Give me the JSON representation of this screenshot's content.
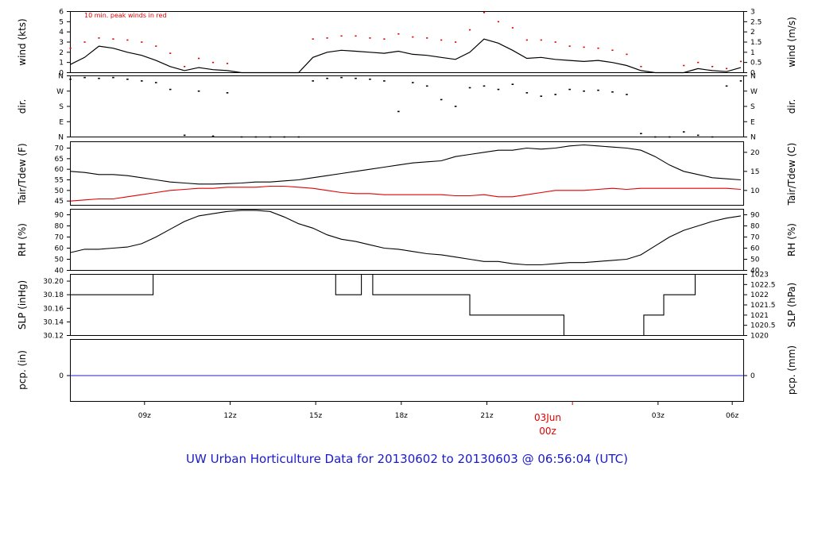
{
  "title": "UW Urban Horticulture Data for 20130602  to  20130603 @ 06:56:04  (UTC)",
  "colors": {
    "main": "#000000",
    "accent": "#e00000",
    "precip": "#2020c0",
    "title": "#1a1acc"
  },
  "time_axis": {
    "ticks": [
      "09z",
      "12z",
      "15z",
      "18z",
      "21z",
      "03z",
      "06z"
    ],
    "date_label": "03Jun",
    "date_sub": "00z"
  },
  "chart_data": [
    {
      "type": "line",
      "panel": "wind",
      "annotation": "10 min. peak winds in red",
      "ylabel_left": "wind (kts)",
      "ylabel_right": "wind (m/s)",
      "ylim": [
        0,
        6
      ],
      "yticks_left": [
        "0",
        "1",
        "2",
        "3",
        "4",
        "5",
        "6"
      ],
      "yticks_right": [
        "0",
        "0.5",
        "1",
        "1.5",
        "2",
        "2.5",
        "3"
      ],
      "x_hours": [
        0,
        0.5,
        1,
        1.5,
        2,
        2.5,
        3,
        3.5,
        4,
        4.5,
        5,
        5.5,
        6,
        6.5,
        7,
        7.5,
        8,
        8.5,
        9,
        9.5,
        10,
        10.5,
        11,
        11.5,
        12,
        12.5,
        13,
        13.5,
        14,
        14.5,
        15,
        15.5,
        16,
        16.5,
        17,
        17.5,
        18,
        18.5,
        19,
        19.5,
        20,
        20.5,
        21,
        21.5,
        22,
        22.5,
        23,
        23.5
      ],
      "series": [
        {
          "values": [
            0.8,
            1.5,
            2.6,
            2.4,
            2.0,
            1.7,
            1.2,
            0.6,
            0.2,
            0.5,
            0.3,
            0.2,
            0,
            0,
            0,
            0,
            0,
            1.5,
            2.0,
            2.2,
            2.1,
            2.0,
            1.9,
            2.1,
            1.8,
            1.7,
            1.5,
            1.3,
            2.0,
            3.3,
            2.9,
            2.2,
            1.4,
            1.5,
            1.3,
            1.2,
            1.1,
            1.2,
            1.0,
            0.7,
            0.2,
            0,
            0,
            0,
            0.4,
            0.2,
            0.1,
            0.5
          ]
        },
        {
          "values": [
            2.4,
            3.0,
            3.4,
            3.3,
            3.2,
            3.0,
            2.6,
            1.9,
            0.6,
            1.4,
            1.0,
            0.9,
            0,
            0,
            0,
            0,
            0,
            3.3,
            3.4,
            3.6,
            3.6,
            3.4,
            3.3,
            3.8,
            3.5,
            3.4,
            3.2,
            3.0,
            4.2,
            5.9,
            5.0,
            4.4,
            3.2,
            3.2,
            3.0,
            2.6,
            2.5,
            2.4,
            2.2,
            1.8,
            0.6,
            0,
            0,
            0.7,
            1.0,
            0.6,
            0.4,
            1.1
          ]
        }
      ]
    },
    {
      "type": "scatter",
      "panel": "dir",
      "ylabel_left": "dir.",
      "ylabel_right": "dir.",
      "ylim": [
        0,
        360
      ],
      "yticks_left": [
        "N",
        "E",
        "S",
        "W",
        "N"
      ],
      "yticks_right": [
        "N",
        "E",
        "S",
        "W",
        "N"
      ],
      "x_hours": [
        0,
        0.5,
        1,
        1.5,
        2,
        2.5,
        3,
        3.5,
        4,
        4.5,
        5,
        5.5,
        6,
        6.5,
        7,
        7.5,
        8,
        8.5,
        9,
        9.5,
        10,
        10.5,
        11,
        11.5,
        12,
        12.5,
        13,
        13.5,
        14,
        14.5,
        15,
        15.5,
        16,
        16.5,
        17,
        17.5,
        18,
        18.5,
        19,
        19.5,
        20,
        20.5,
        21,
        21.5,
        22,
        22.5,
        23,
        23.5
      ],
      "series": [
        {
          "values": [
            340,
            350,
            345,
            350,
            340,
            330,
            320,
            280,
            10,
            270,
            5,
            260,
            0,
            0,
            0,
            0,
            0,
            330,
            345,
            350,
            345,
            340,
            330,
            150,
            320,
            300,
            220,
            180,
            290,
            300,
            280,
            310,
            260,
            240,
            250,
            280,
            270,
            275,
            265,
            250,
            20,
            0,
            0,
            30,
            10,
            0,
            300,
            330
          ]
        }
      ]
    },
    {
      "type": "line",
      "panel": "temp",
      "ylabel_left": "Tair/Tdew (F)",
      "ylabel_right": "Tair/Tdew (C)",
      "ylim": [
        43,
        73
      ],
      "yticks_left": [
        "45",
        "50",
        "55",
        "60",
        "65",
        "70"
      ],
      "yticks_right": [
        "10",
        "15",
        "20"
      ],
      "x_hours": [
        0,
        0.5,
        1,
        1.5,
        2,
        2.5,
        3,
        3.5,
        4,
        4.5,
        5,
        5.5,
        6,
        6.5,
        7,
        7.5,
        8,
        8.5,
        9,
        9.5,
        10,
        10.5,
        11,
        11.5,
        12,
        12.5,
        13,
        13.5,
        14,
        14.5,
        15,
        15.5,
        16,
        16.5,
        17,
        17.5,
        18,
        18.5,
        19,
        19.5,
        20,
        20.5,
        21,
        21.5,
        22,
        22.5,
        23,
        23.5
      ],
      "series": [
        {
          "name": "Tair",
          "values": [
            59,
            58.5,
            57.5,
            57.5,
            57,
            56,
            55,
            54,
            53.5,
            53,
            53,
            53.2,
            53.5,
            54,
            54,
            54.5,
            55,
            56,
            57,
            58,
            59,
            60,
            61,
            62,
            63,
            63.5,
            64,
            66,
            67,
            68,
            69,
            69,
            70,
            69.5,
            70,
            71,
            71.5,
            71,
            70.5,
            70,
            69,
            66,
            62,
            59,
            57.5,
            56,
            55.5,
            55
          ]
        },
        {
          "name": "Tdew",
          "values": [
            45,
            45.5,
            46,
            46,
            47,
            48,
            49,
            50,
            50.5,
            51,
            51,
            51.5,
            51.5,
            51.5,
            52,
            52,
            51.5,
            51,
            50,
            49,
            48.5,
            48.5,
            48,
            48,
            48,
            48,
            48,
            47.5,
            47.5,
            48,
            47,
            47,
            48,
            49,
            50,
            50,
            50,
            50.5,
            51,
            50.5,
            51,
            51,
            51,
            51,
            51,
            51,
            51,
            50.5
          ]
        }
      ]
    },
    {
      "type": "line",
      "panel": "rh",
      "ylabel_left": "RH (%)",
      "ylabel_right": "RH (%)",
      "ylim": [
        40,
        95
      ],
      "yticks_left": [
        "40",
        "50",
        "60",
        "70",
        "80",
        "90"
      ],
      "yticks_right": [
        "40",
        "50",
        "60",
        "70",
        "80",
        "90"
      ],
      "x_hours": [
        0,
        0.5,
        1,
        1.5,
        2,
        2.5,
        3,
        3.5,
        4,
        4.5,
        5,
        5.5,
        6,
        6.5,
        7,
        7.5,
        8,
        8.5,
        9,
        9.5,
        10,
        10.5,
        11,
        11.5,
        12,
        12.5,
        13,
        13.5,
        14,
        14.5,
        15,
        15.5,
        16,
        16.5,
        17,
        17.5,
        18,
        18.5,
        19,
        19.5,
        20,
        20.5,
        21,
        21.5,
        22,
        22.5,
        23,
        23.5
      ],
      "series": [
        {
          "values": [
            56,
            59,
            59,
            60,
            61,
            64,
            70,
            77,
            84,
            89,
            91,
            93,
            94,
            94,
            93,
            88,
            82,
            78,
            72,
            68,
            66,
            63,
            60,
            59,
            57,
            55,
            54,
            52,
            50,
            48,
            48,
            46,
            45,
            45,
            46,
            47,
            47,
            48,
            49,
            50,
            54,
            62,
            70,
            76,
            80,
            84,
            87,
            89
          ]
        }
      ]
    },
    {
      "type": "line",
      "panel": "slp",
      "ylabel_left": "SLP (inHg)",
      "ylabel_right": "SLP (hPa)",
      "ylim": [
        30.12,
        30.21
      ],
      "yticks_left": [
        "30.12",
        "30.14",
        "30.16",
        "30.18",
        "30.20"
      ],
      "yticks_right": [
        "1020",
        "1020.5",
        "1021",
        "1021.5",
        "1022",
        "1022.5",
        "1023"
      ],
      "step_x_hours": [
        0,
        2.9,
        9.3,
        10.2,
        10.6,
        23.1
      ],
      "step_hours_end": 23.1,
      "series": [
        {
          "x": [
            0,
            2.9,
            2.9,
            9.3,
            9.3,
            10.2,
            10.2,
            10.6,
            10.6,
            14.0,
            14.0,
            17.3,
            17.3,
            20.1,
            20.1,
            20.8,
            20.8,
            21.9,
            21.9,
            23.1
          ],
          "values": [
            30.18,
            30.18,
            30.21,
            30.21,
            30.18,
            30.18,
            30.21,
            30.21,
            30.18,
            30.18,
            30.15,
            30.15,
            30.12,
            30.12,
            30.15,
            30.15,
            30.18,
            30.18,
            30.21,
            30.21
          ]
        }
      ]
    },
    {
      "type": "line",
      "panel": "pcp",
      "ylabel_left": "pcp. (in)",
      "ylabel_right": "pcp. (mm)",
      "yticks_left": [
        "0"
      ],
      "yticks_right": [
        "0"
      ],
      "series": [
        {
          "values": [
            0,
            0
          ]
        }
      ]
    }
  ]
}
